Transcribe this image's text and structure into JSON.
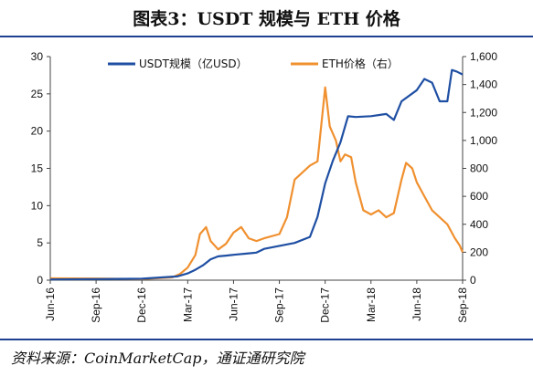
{
  "title": "图表3：USDT 规模与 ETH 价格",
  "source": "资料来源：CoinMarketCap，通证通研究院",
  "chart_data": {
    "type": "line",
    "x_ticks": [
      "Jun-16",
      "Sep-16",
      "Dec-16",
      "Mar-17",
      "Jun-17",
      "Sep-17",
      "Dec-17",
      "Mar-18",
      "Jun-18",
      "Sep-18"
    ],
    "x_range": [
      0,
      27
    ],
    "y_left": {
      "ticks": [
        "0",
        "5",
        "10",
        "15",
        "20",
        "25",
        "30"
      ],
      "ylim": [
        0,
        30
      ]
    },
    "y_right": {
      "ticks": [
        "0",
        "200",
        "400",
        "600",
        "800",
        "1,000",
        "1,200",
        "1,400",
        "1,600"
      ],
      "ylim": [
        0,
        1600
      ]
    },
    "legend": [
      "USDT规模（亿USD）",
      "ETH价格（右）"
    ],
    "colors": {
      "usdt": "#1f4fa3",
      "eth": "#f0902f"
    },
    "series": [
      {
        "name": "USDT规模（亿USD）",
        "axis": "left",
        "x": [
          0,
          3,
          6,
          8.3,
          9,
          9.5,
          10,
          10.5,
          11,
          11.5,
          12,
          13,
          13.5,
          14,
          15,
          16,
          17,
          17.5,
          18,
          18.5,
          19,
          19.5,
          20,
          21,
          22,
          22.5,
          23,
          24,
          24.5,
          25,
          25.5,
          26,
          26.3,
          26.6,
          27
        ],
        "y": [
          0.1,
          0.15,
          0.2,
          0.5,
          0.9,
          1.4,
          2.0,
          2.8,
          3.2,
          3.3,
          3.4,
          3.6,
          3.7,
          4.2,
          4.6,
          5.0,
          5.8,
          8.5,
          13.0,
          16.0,
          18.5,
          22.0,
          21.9,
          22.0,
          22.3,
          21.5,
          24.0,
          25.5,
          27.0,
          26.5,
          24.0,
          24.0,
          28.2,
          28.0,
          27.6
        ]
      },
      {
        "name": "ETH价格（右）",
        "axis": "right",
        "x": [
          0,
          3,
          6,
          8,
          8.5,
          9,
          9.5,
          9.8,
          10.2,
          10.5,
          11,
          11.5,
          12,
          12.5,
          13,
          13.5,
          14,
          15,
          15.5,
          16,
          17,
          17.5,
          18,
          18.3,
          18.7,
          19,
          19.3,
          19.7,
          20,
          20.5,
          21,
          21.5,
          22,
          22.5,
          23,
          23.3,
          23.7,
          24,
          24.5,
          25,
          25.5,
          26,
          26.5,
          26.8,
          27
        ],
        "y": [
          13,
          12,
          8,
          20,
          45,
          90,
          180,
          330,
          380,
          280,
          220,
          260,
          340,
          380,
          300,
          280,
          300,
          330,
          450,
          720,
          820,
          850,
          1380,
          1100,
          1000,
          850,
          900,
          880,
          700,
          500,
          470,
          500,
          450,
          480,
          720,
          840,
          800,
          700,
          600,
          500,
          450,
          400,
          300,
          250,
          200
        ]
      }
    ]
  }
}
